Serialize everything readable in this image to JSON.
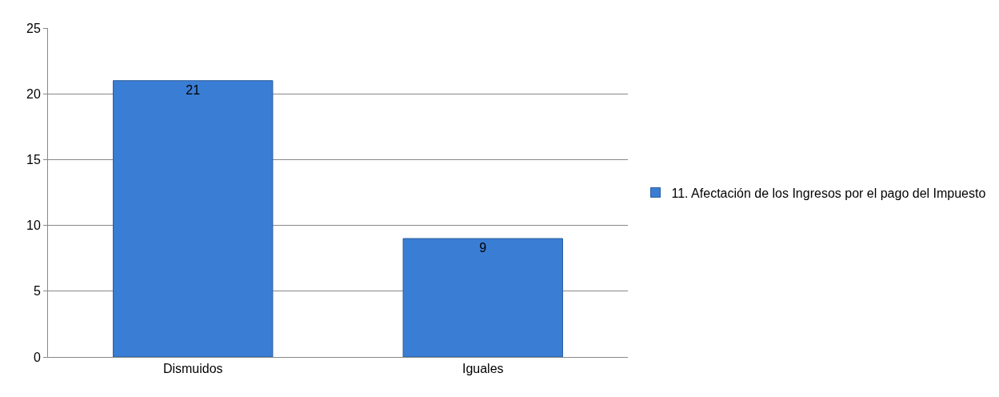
{
  "chart_data": {
    "type": "bar",
    "categories": [
      "Dismuidos",
      "Iguales"
    ],
    "series": [
      {
        "name": "11. Afectación de los Ingresos por el pago del Impuesto",
        "color": "#3a7dd4",
        "values": [
          21,
          9
        ]
      }
    ],
    "ylim": [
      0,
      25
    ],
    "yticks": [
      0,
      5,
      10,
      15,
      20,
      25
    ],
    "grid": "y",
    "legend": "right",
    "data_labels": true
  }
}
